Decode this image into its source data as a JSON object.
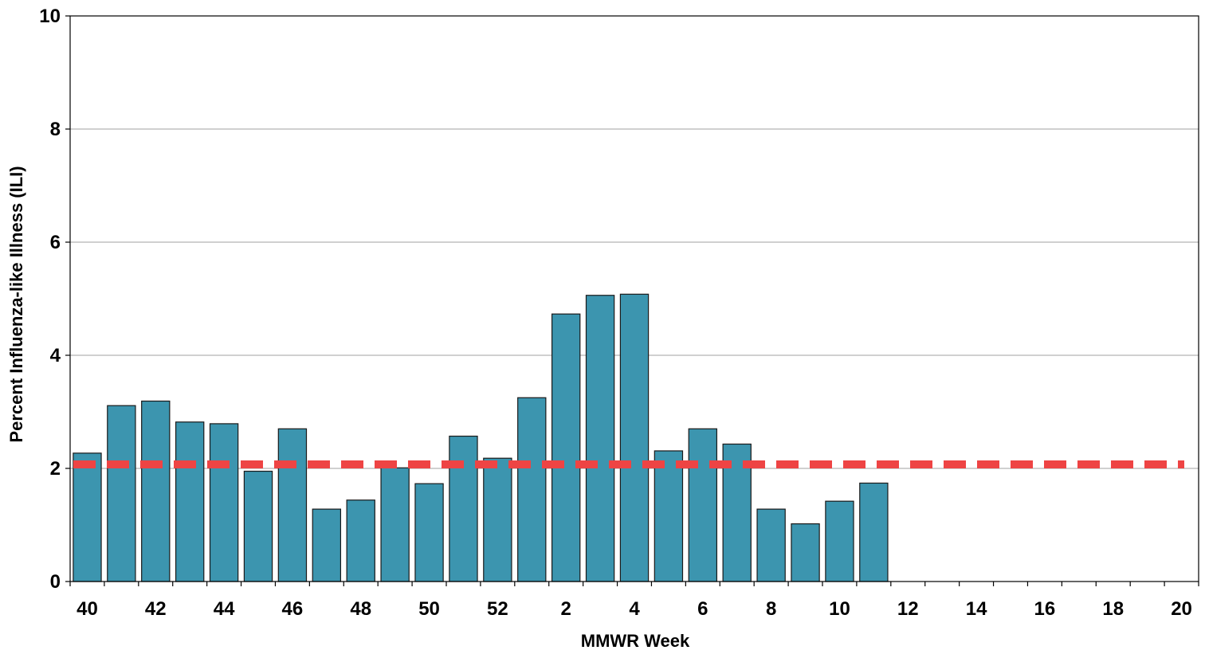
{
  "chart_data": {
    "type": "bar",
    "title": "",
    "xlabel": "MMWR Week",
    "ylabel": "Percent Influenza-like Illness (ILI)",
    "ylim": [
      0,
      10
    ],
    "yticks": [
      0,
      2,
      4,
      6,
      8,
      10
    ],
    "grid": "horizontal",
    "categories": [
      "40",
      "41",
      "42",
      "43",
      "44",
      "45",
      "46",
      "47",
      "48",
      "49",
      "50",
      "51",
      "52",
      "1",
      "2",
      "3",
      "4",
      "5",
      "6",
      "7",
      "8",
      "9",
      "10",
      "11",
      "12",
      "13",
      "14",
      "15",
      "16",
      "17",
      "18",
      "19",
      "20"
    ],
    "x_tick_labels": [
      "40",
      "42",
      "44",
      "46",
      "48",
      "50",
      "52",
      "2",
      "4",
      "6",
      "8",
      "10",
      "12",
      "14",
      "16",
      "18",
      "20"
    ],
    "values": [
      2.27,
      3.11,
      3.19,
      2.82,
      2.79,
      1.95,
      2.7,
      1.28,
      1.44,
      2.01,
      1.73,
      2.57,
      2.18,
      3.25,
      4.73,
      5.06,
      5.08,
      2.31,
      2.7,
      2.43,
      1.28,
      1.02,
      1.42,
      1.74,
      null,
      null,
      null,
      null,
      null,
      null,
      null,
      null,
      null
    ],
    "baseline": 2.07,
    "colors": {
      "bar_fill": "#3C95AF",
      "bar_stroke": "#1A1A1A",
      "baseline": "#EE4444",
      "grid": "#A0A0A0"
    }
  }
}
